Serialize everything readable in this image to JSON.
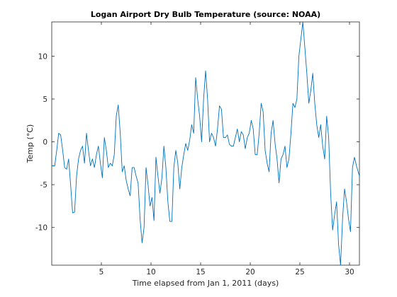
{
  "chart_data": {
    "type": "line",
    "title": "Logan Airport Dry Bulb Temperature (source: NOAA)",
    "xlabel": "Time elapsed from Jan 1, 2011 (days)",
    "ylabel": "Temp (°C)",
    "xlim": [
      0,
      31
    ],
    "ylim": [
      -14.4,
      14
    ],
    "xticks": [
      5,
      10,
      15,
      20,
      25,
      30
    ],
    "yticks": [
      10,
      5,
      0,
      -5,
      -10
    ],
    "grid": false,
    "legend": "none",
    "series": [
      {
        "color": "#0072bd",
        "x": [
          0,
          0.3,
          0.5,
          0.7,
          0.9,
          1.1,
          1.3,
          1.5,
          1.7,
          1.9,
          2.1,
          2.3,
          2.5,
          2.7,
          2.9,
          3.1,
          3.3,
          3.5,
          3.7,
          3.9,
          4.1,
          4.3,
          4.5,
          4.7,
          4.9,
          5.1,
          5.3,
          5.5,
          5.7,
          5.9,
          6.1,
          6.3,
          6.5,
          6.7,
          6.9,
          7.1,
          7.3,
          7.5,
          7.7,
          7.9,
          8.1,
          8.3,
          8.5,
          8.7,
          8.9,
          9.1,
          9.3,
          9.5,
          9.7,
          9.9,
          10.1,
          10.3,
          10.5,
          10.7,
          10.9,
          11.1,
          11.3,
          11.5,
          11.7,
          11.9,
          12.1,
          12.3,
          12.5,
          12.7,
          12.9,
          13.1,
          13.3,
          13.5,
          13.7,
          13.9,
          14.1,
          14.3,
          14.5,
          14.7,
          14.9,
          15.1,
          15.3,
          15.5,
          15.7,
          15.9,
          16.1,
          16.3,
          16.5,
          16.7,
          16.9,
          17.1,
          17.3,
          17.5,
          17.7,
          17.9,
          18.1,
          18.3,
          18.5,
          18.7,
          18.9,
          19.1,
          19.3,
          19.5,
          19.7,
          19.9,
          20.1,
          20.3,
          20.5,
          20.7,
          20.9,
          21.1,
          21.3,
          21.5,
          21.7,
          21.9,
          22.1,
          22.3,
          22.5,
          22.7,
          22.9,
          23.1,
          23.3,
          23.5,
          23.7,
          23.9,
          24.1,
          24.3,
          24.5,
          24.7,
          24.9,
          25.1,
          25.3,
          25.5,
          25.7,
          25.9,
          26.1,
          26.3,
          26.5,
          26.7,
          26.9,
          27.1,
          27.3,
          27.5,
          27.7,
          27.9,
          28.1,
          28.3,
          28.5,
          28.7,
          28.9,
          29.1,
          29.3,
          29.5,
          29.7,
          29.9,
          30.1,
          30.3,
          30.5,
          30.7,
          31
        ],
        "y": [
          -2.8,
          -2.8,
          -1,
          1,
          0.8,
          -1,
          -3,
          -3.2,
          -2,
          -5,
          -8.3,
          -8.2,
          -4,
          -2,
          -1,
          -0.5,
          -2.5,
          1,
          -1,
          -2.8,
          -2,
          -3,
          -1.5,
          -0.5,
          -2.5,
          -4.2,
          0.5,
          -1,
          -3,
          -2.5,
          -2.8,
          -1.5,
          3,
          4.3,
          1,
          -3.5,
          -2.8,
          -4.5,
          -5.5,
          -6.3,
          -3,
          -3,
          -4,
          -4.8,
          -9,
          -11.8,
          -10,
          -3,
          -5,
          -7.5,
          -6.5,
          -9.2,
          -1.8,
          -4,
          -6,
          -4.2,
          -0.5,
          -3,
          -7,
          -9.3,
          -9.3,
          -3,
          -1,
          -2.5,
          -5.5,
          -3,
          -1.5,
          -0.2,
          -1,
          0.2,
          2,
          1,
          7.5,
          5,
          3,
          0,
          5,
          8.3,
          5,
          0,
          1,
          0.5,
          -0.5,
          1.5,
          4.2,
          3.8,
          0.5,
          0.5,
          0.8,
          -0.3,
          -0.5,
          -0.5,
          0.5,
          1.5,
          0,
          1.2,
          0.8,
          -0.8,
          0.5,
          1,
          2.5,
          1.5,
          -1.5,
          -1.5,
          1,
          4.5,
          3.5,
          -1,
          -2.5,
          -3.5,
          1,
          2.5,
          -0.2,
          -2,
          -4.8,
          -2,
          -1.5,
          -0.5,
          -3,
          -2,
          1,
          4.5,
          4,
          5,
          10,
          12,
          14,
          11,
          8,
          4.5,
          6,
          8,
          4.5,
          2,
          0.5,
          2,
          -0.5,
          -2,
          3,
          0.5,
          -6,
          -10.3,
          -8.5,
          -7,
          -12,
          -14.4,
          -9,
          -5.5,
          -7,
          -9,
          -10.5,
          -3,
          -1.8,
          -2.8,
          -4
        ]
      }
    ]
  }
}
